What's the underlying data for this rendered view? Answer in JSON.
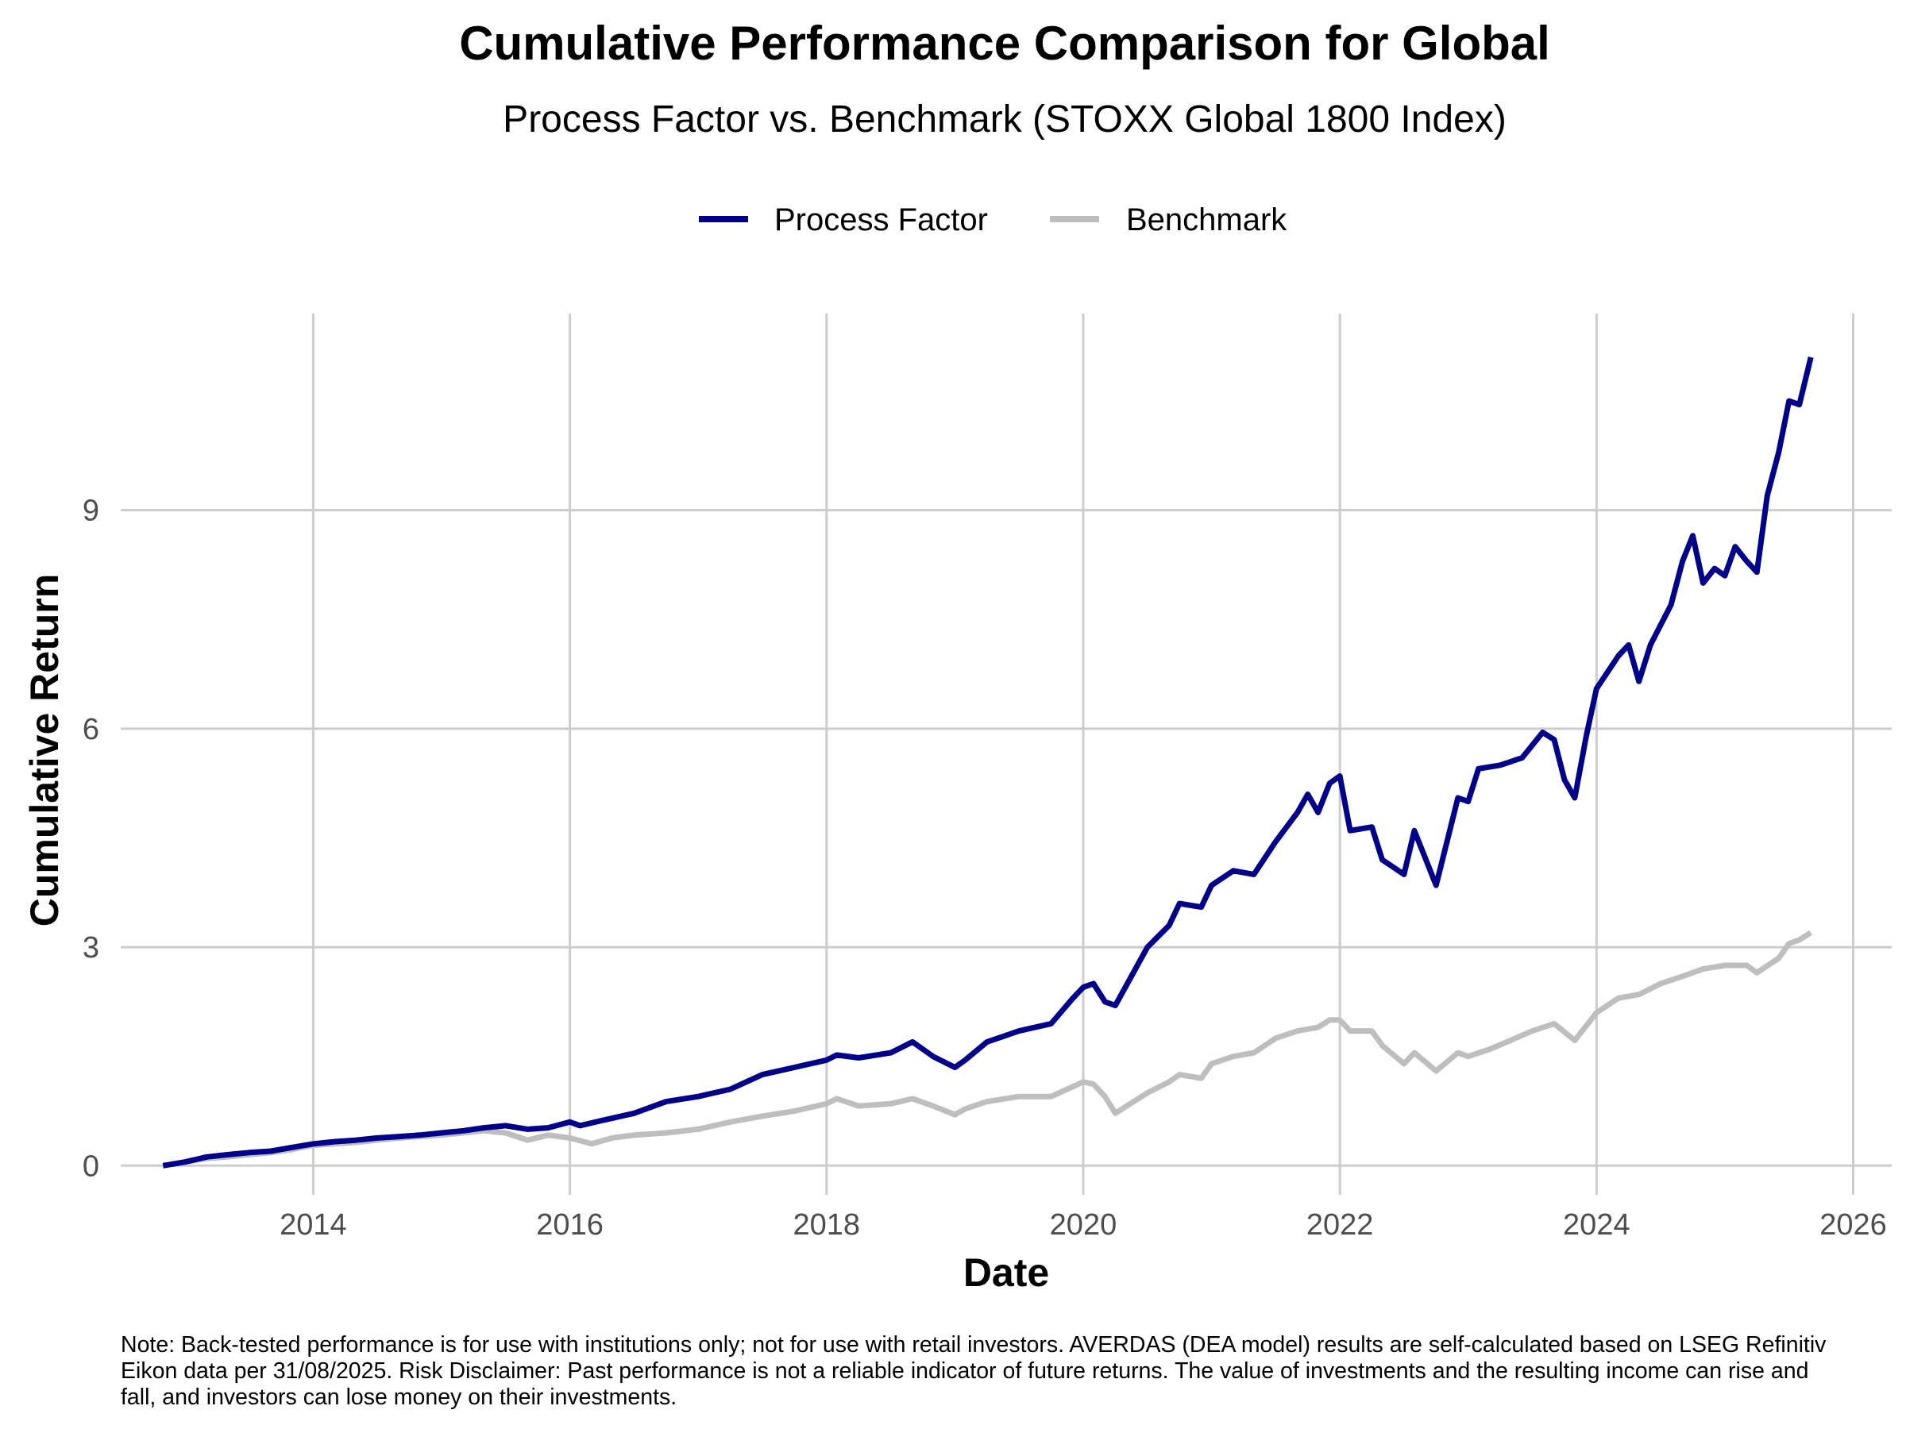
{
  "chart_data": {
    "type": "line",
    "title": "Cumulative Performance Comparison for Global",
    "subtitle": "Process Factor vs. Benchmark (STOXX Global 1800 Index)",
    "xlabel": "Date",
    "ylabel": "Cumulative Return",
    "xlim": [
      2012.5,
      2026.3
    ],
    "ylim": [
      -0.4,
      11.7
    ],
    "x_ticks": [
      2014,
      2016,
      2018,
      2020,
      2022,
      2024,
      2026
    ],
    "y_ticks": [
      0,
      3,
      6,
      9
    ],
    "grid": true,
    "legend_position": "top",
    "colors": {
      "Process Factor": "#00008b",
      "Benchmark": "#bebebe"
    },
    "series": [
      {
        "name": "Process Factor",
        "points": [
          [
            2012.83,
            0.0
          ],
          [
            2013.0,
            0.05
          ],
          [
            2013.17,
            0.12
          ],
          [
            2013.33,
            0.15
          ],
          [
            2013.5,
            0.18
          ],
          [
            2013.67,
            0.2
          ],
          [
            2013.83,
            0.25
          ],
          [
            2014.0,
            0.3
          ],
          [
            2014.17,
            0.33
          ],
          [
            2014.33,
            0.35
          ],
          [
            2014.5,
            0.38
          ],
          [
            2014.67,
            0.4
          ],
          [
            2014.83,
            0.42
          ],
          [
            2015.0,
            0.45
          ],
          [
            2015.17,
            0.48
          ],
          [
            2015.33,
            0.52
          ],
          [
            2015.5,
            0.55
          ],
          [
            2015.67,
            0.5
          ],
          [
            2015.83,
            0.52
          ],
          [
            2016.0,
            0.6
          ],
          [
            2016.08,
            0.55
          ],
          [
            2016.25,
            0.62
          ],
          [
            2016.5,
            0.72
          ],
          [
            2016.75,
            0.88
          ],
          [
            2017.0,
            0.95
          ],
          [
            2017.25,
            1.05
          ],
          [
            2017.5,
            1.25
          ],
          [
            2017.75,
            1.35
          ],
          [
            2018.0,
            1.45
          ],
          [
            2018.08,
            1.52
          ],
          [
            2018.25,
            1.48
          ],
          [
            2018.5,
            1.55
          ],
          [
            2018.67,
            1.7
          ],
          [
            2018.83,
            1.5
          ],
          [
            2019.0,
            1.35
          ],
          [
            2019.08,
            1.45
          ],
          [
            2019.25,
            1.7
          ],
          [
            2019.5,
            1.85
          ],
          [
            2019.75,
            1.95
          ],
          [
            2019.92,
            2.3
          ],
          [
            2020.0,
            2.45
          ],
          [
            2020.08,
            2.5
          ],
          [
            2020.17,
            2.25
          ],
          [
            2020.25,
            2.2
          ],
          [
            2020.5,
            3.0
          ],
          [
            2020.67,
            3.3
          ],
          [
            2020.75,
            3.6
          ],
          [
            2020.92,
            3.55
          ],
          [
            2021.0,
            3.85
          ],
          [
            2021.17,
            4.05
          ],
          [
            2021.33,
            4.0
          ],
          [
            2021.5,
            4.45
          ],
          [
            2021.67,
            4.85
          ],
          [
            2021.75,
            5.1
          ],
          [
            2021.83,
            4.85
          ],
          [
            2021.92,
            5.25
          ],
          [
            2022.0,
            5.35
          ],
          [
            2022.08,
            4.6
          ],
          [
            2022.25,
            4.65
          ],
          [
            2022.33,
            4.2
          ],
          [
            2022.5,
            4.0
          ],
          [
            2022.58,
            4.6
          ],
          [
            2022.75,
            3.85
          ],
          [
            2022.92,
            5.05
          ],
          [
            2023.0,
            5.0
          ],
          [
            2023.08,
            5.45
          ],
          [
            2023.25,
            5.5
          ],
          [
            2023.42,
            5.6
          ],
          [
            2023.58,
            5.95
          ],
          [
            2023.67,
            5.85
          ],
          [
            2023.75,
            5.3
          ],
          [
            2023.83,
            5.05
          ],
          [
            2023.92,
            5.9
          ],
          [
            2024.0,
            6.55
          ],
          [
            2024.17,
            7.0
          ],
          [
            2024.25,
            7.15
          ],
          [
            2024.33,
            6.65
          ],
          [
            2024.42,
            7.15
          ],
          [
            2024.58,
            7.7
          ],
          [
            2024.67,
            8.3
          ],
          [
            2024.75,
            8.65
          ],
          [
            2024.83,
            8.0
          ],
          [
            2024.92,
            8.2
          ],
          [
            2025.0,
            8.1
          ],
          [
            2025.08,
            8.5
          ],
          [
            2025.17,
            8.3
          ],
          [
            2025.25,
            8.15
          ],
          [
            2025.33,
            9.2
          ],
          [
            2025.42,
            9.8
          ],
          [
            2025.5,
            10.5
          ],
          [
            2025.58,
            10.45
          ],
          [
            2025.67,
            11.1
          ]
        ]
      },
      {
        "name": "Benchmark",
        "points": [
          [
            2012.83,
            0.0
          ],
          [
            2013.0,
            0.05
          ],
          [
            2013.17,
            0.1
          ],
          [
            2013.33,
            0.12
          ],
          [
            2013.5,
            0.15
          ],
          [
            2013.67,
            0.18
          ],
          [
            2013.83,
            0.22
          ],
          [
            2014.0,
            0.28
          ],
          [
            2014.17,
            0.3
          ],
          [
            2014.33,
            0.32
          ],
          [
            2014.5,
            0.35
          ],
          [
            2014.67,
            0.38
          ],
          [
            2014.83,
            0.4
          ],
          [
            2015.0,
            0.42
          ],
          [
            2015.17,
            0.45
          ],
          [
            2015.33,
            0.48
          ],
          [
            2015.5,
            0.45
          ],
          [
            2015.67,
            0.35
          ],
          [
            2015.83,
            0.42
          ],
          [
            2016.0,
            0.38
          ],
          [
            2016.17,
            0.3
          ],
          [
            2016.33,
            0.38
          ],
          [
            2016.5,
            0.42
          ],
          [
            2016.75,
            0.45
          ],
          [
            2017.0,
            0.5
          ],
          [
            2017.25,
            0.6
          ],
          [
            2017.5,
            0.68
          ],
          [
            2017.75,
            0.75
          ],
          [
            2018.0,
            0.85
          ],
          [
            2018.08,
            0.92
          ],
          [
            2018.25,
            0.82
          ],
          [
            2018.5,
            0.85
          ],
          [
            2018.67,
            0.92
          ],
          [
            2018.83,
            0.82
          ],
          [
            2019.0,
            0.7
          ],
          [
            2019.08,
            0.78
          ],
          [
            2019.25,
            0.88
          ],
          [
            2019.5,
            0.95
          ],
          [
            2019.75,
            0.95
          ],
          [
            2020.0,
            1.15
          ],
          [
            2020.08,
            1.12
          ],
          [
            2020.17,
            0.95
          ],
          [
            2020.25,
            0.72
          ],
          [
            2020.5,
            1.0
          ],
          [
            2020.67,
            1.15
          ],
          [
            2020.75,
            1.25
          ],
          [
            2020.92,
            1.2
          ],
          [
            2021.0,
            1.4
          ],
          [
            2021.17,
            1.5
          ],
          [
            2021.33,
            1.55
          ],
          [
            2021.5,
            1.75
          ],
          [
            2021.67,
            1.85
          ],
          [
            2021.83,
            1.9
          ],
          [
            2021.92,
            2.0
          ],
          [
            2022.0,
            2.0
          ],
          [
            2022.08,
            1.85
          ],
          [
            2022.25,
            1.85
          ],
          [
            2022.33,
            1.65
          ],
          [
            2022.5,
            1.4
          ],
          [
            2022.58,
            1.55
          ],
          [
            2022.75,
            1.3
          ],
          [
            2022.92,
            1.55
          ],
          [
            2023.0,
            1.5
          ],
          [
            2023.17,
            1.6
          ],
          [
            2023.33,
            1.72
          ],
          [
            2023.5,
            1.85
          ],
          [
            2023.67,
            1.95
          ],
          [
            2023.83,
            1.72
          ],
          [
            2024.0,
            2.1
          ],
          [
            2024.17,
            2.3
          ],
          [
            2024.33,
            2.35
          ],
          [
            2024.5,
            2.5
          ],
          [
            2024.67,
            2.6
          ],
          [
            2024.83,
            2.7
          ],
          [
            2025.0,
            2.75
          ],
          [
            2025.17,
            2.75
          ],
          [
            2025.25,
            2.65
          ],
          [
            2025.42,
            2.85
          ],
          [
            2025.5,
            3.05
          ],
          [
            2025.58,
            3.1
          ],
          [
            2025.67,
            3.2
          ]
        ]
      }
    ]
  },
  "note": "Note: Back-tested performance is for use with institutions only; not for use with retail investors. AVERDAS (DEA model) results are self-calculated based on LSEG Refinitiv Eikon data per 31/08/2025. Risk Disclaimer: Past performance is not a reliable indicator of future returns. The value of investments and the resulting income can rise and fall, and investors can lose money on their investments."
}
